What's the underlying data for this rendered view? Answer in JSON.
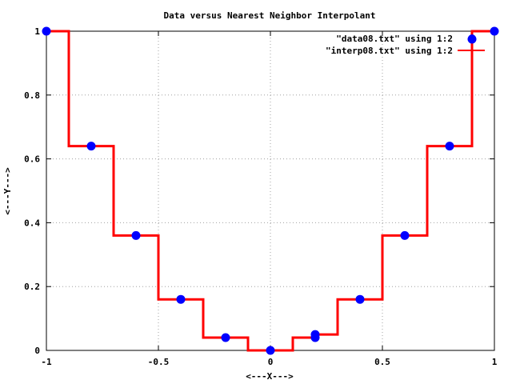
{
  "chart_data": {
    "type": "line",
    "title": "Data versus Nearest Neighbor Interpolant",
    "xlabel": "<---X--->",
    "ylabel": "<---Y--->",
    "xlim": [
      -1,
      1
    ],
    "ylim": [
      0,
      1
    ],
    "xticks": [
      -1,
      -0.5,
      0,
      0.5,
      1
    ],
    "xtick_labels": [
      "-1",
      "-0.5",
      "0",
      "0.5",
      "1"
    ],
    "yticks": [
      0,
      0.2,
      0.4,
      0.6,
      0.8,
      1
    ],
    "ytick_labels": [
      "0",
      "0.2",
      "0.4",
      "0.6",
      "0.8",
      "1"
    ],
    "grid": true,
    "legend_position": "top-right",
    "colors": {
      "data": "#0000ff",
      "interp": "#ff0000"
    },
    "series": [
      {
        "name": "\"data08.txt\" using 1:2",
        "style": "points",
        "x": [
          -1,
          -0.8,
          -0.6,
          -0.4,
          -0.2,
          0,
          0.2,
          0.2,
          0.4,
          0.6,
          0.8,
          0.9,
          1
        ],
        "y": [
          1,
          0.64,
          0.36,
          0.16,
          0.04,
          0,
          0.04,
          0.05,
          0.16,
          0.36,
          0.64,
          0.975,
          1
        ]
      },
      {
        "name": "\"interp08.txt\" using 1:2",
        "style": "steps",
        "x": [
          -1,
          -0.9,
          -0.9,
          -0.7,
          -0.7,
          -0.5,
          -0.5,
          -0.3,
          -0.3,
          -0.1,
          -0.1,
          0.1,
          0.1,
          0.2,
          0.2,
          0.3,
          0.3,
          0.5,
          0.5,
          0.7,
          0.7,
          0.9,
          0.9,
          1
        ],
        "y": [
          1,
          1,
          0.64,
          0.64,
          0.36,
          0.36,
          0.16,
          0.16,
          0.04,
          0.04,
          0,
          0,
          0.04,
          0.04,
          0.05,
          0.05,
          0.16,
          0.16,
          0.36,
          0.36,
          0.64,
          0.64,
          1,
          1
        ]
      }
    ]
  }
}
